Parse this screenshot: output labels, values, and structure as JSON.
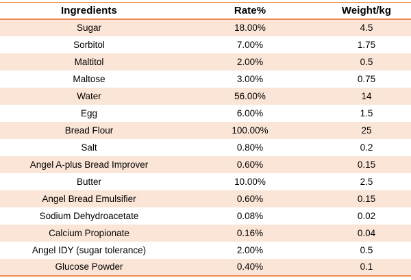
{
  "chart_data": {
    "type": "table",
    "columns": [
      "Ingredients",
      "Rate%",
      "Weight/kg"
    ],
    "rows": [
      [
        "Sugar",
        "18.00%",
        "4.5"
      ],
      [
        "Sorbitol",
        "7.00%",
        "1.75"
      ],
      [
        "Maltitol",
        "2.00%",
        "0.5"
      ],
      [
        "Maltose",
        "3.00%",
        "0.75"
      ],
      [
        "Water",
        "56.00%",
        "14"
      ],
      [
        "Egg",
        "6.00%",
        "1.5"
      ],
      [
        "Bread Flour",
        "100.00%",
        "25"
      ],
      [
        "Salt",
        "0.80%",
        "0.2"
      ],
      [
        "Angel A-plus Bread Improver",
        "0.60%",
        "0.15"
      ],
      [
        "Butter",
        "10.00%",
        "2.5"
      ],
      [
        "Angel Bread Emulsifier",
        "0.60%",
        "0.15"
      ],
      [
        "Sodium Dehydroacetate",
        "0.08%",
        "0.02"
      ],
      [
        "Calcium Propionate",
        "0.16%",
        "0.04"
      ],
      [
        "Angel IDY (sugar tolerance)",
        "2.00%",
        "0.5"
      ],
      [
        "Glucose Powder",
        "0.40%",
        "0.1"
      ]
    ]
  },
  "colors": {
    "border": "#ED8C52",
    "stripe": "#FBE5D6",
    "text": "#000000",
    "background": "#FFFFFF"
  }
}
